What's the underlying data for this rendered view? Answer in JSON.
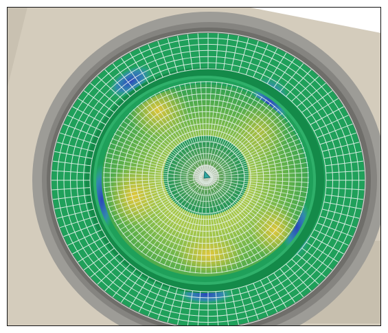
{
  "scene": {
    "subject": "",
    "colors": {
      "frame_border": "#111111",
      "background_plate": "#d4ccbc",
      "plate_shadow": "#b8b0a2",
      "outer_ring": "#9c9b96",
      "outer_ring_inner": "#7f7e79",
      "mesh_green": "#1fa05a",
      "mesh_green_dark": "#148a49",
      "mesh_yellow": "#d8c23a",
      "mesh_lime": "#a9c84a",
      "mesh_blue": "#3a5fc8",
      "mesh_cyan": "#3cb4b4",
      "mesh_lines": "#e9f5ef",
      "center_marker": "#2fa6a0"
    }
  }
}
